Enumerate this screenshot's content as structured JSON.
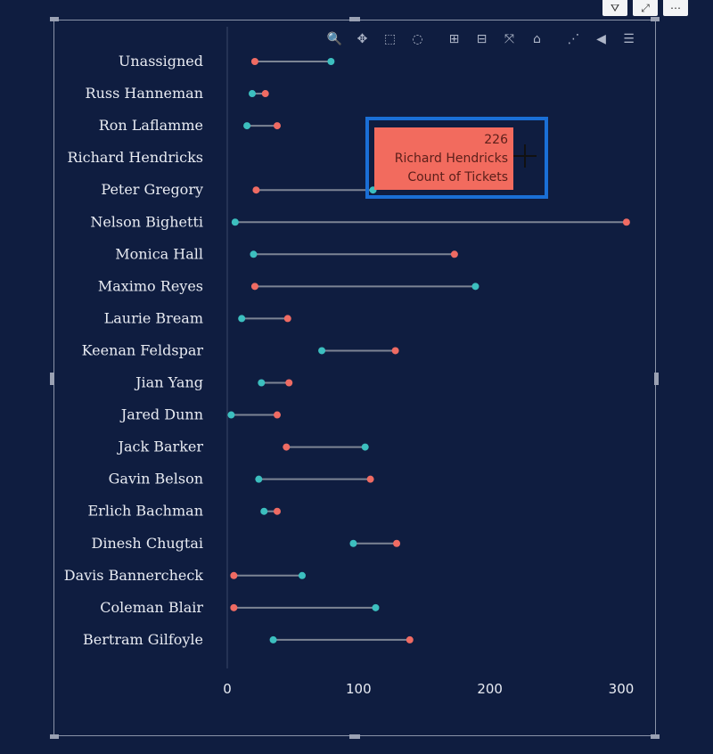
{
  "header_icons": [
    {
      "name": "filter-icon",
      "glyph": "⛛"
    },
    {
      "name": "focus-mode-icon",
      "glyph": "⤢"
    },
    {
      "name": "more-options-icon",
      "glyph": "⋯"
    }
  ],
  "toolbar": [
    {
      "name": "zoom-icon",
      "glyph": "🔍"
    },
    {
      "name": "pan-icon",
      "glyph": "✥"
    },
    {
      "name": "box-select-icon",
      "glyph": "⬚"
    },
    {
      "name": "lasso-select-icon",
      "glyph": "◌"
    },
    {
      "name": "zoom-in-icon",
      "glyph": "⊞"
    },
    {
      "name": "zoom-out-icon",
      "glyph": "⊟"
    },
    {
      "name": "autoscale-icon",
      "glyph": "⤧"
    },
    {
      "name": "reset-axes-icon",
      "glyph": "⌂"
    },
    {
      "name": "spike-lines-icon",
      "glyph": "⋰"
    },
    {
      "name": "hover-closest-icon",
      "glyph": "◀"
    },
    {
      "name": "hover-compare-icon",
      "glyph": "☰"
    }
  ],
  "tooltip": {
    "value": "226",
    "name": "Richard Hendricks",
    "measure": "Count of Tickets"
  },
  "chart_data": {
    "type": "dumbbell",
    "categories": [
      "Unassigned",
      "Russ Hanneman",
      "Ron Laflamme",
      "Richard Hendricks",
      "Peter Gregory",
      "Nelson Bighetti",
      "Monica Hall",
      "Maximo Reyes",
      "Laurie Bream",
      "Keenan Feldspar",
      "Jian Yang",
      "Jared Dunn",
      "Jack Barker",
      "Gavin Belson",
      "Erlich Bachman",
      "Dinesh Chugtai",
      "Davis Bannercheck",
      "Coleman Blair",
      "Bertram Gilfoyle"
    ],
    "series": [
      {
        "color": "#3cbfbf",
        "values": [
          79,
          19,
          15,
          null,
          111,
          6,
          20,
          189,
          11,
          72,
          26,
          3,
          105,
          24,
          28,
          96,
          57,
          113,
          35
        ]
      },
      {
        "color": "#ef6b63",
        "values": [
          21,
          29,
          38,
          null,
          22,
          304,
          173,
          21,
          46,
          128,
          47,
          38,
          45,
          109,
          38,
          129,
          5,
          5,
          139
        ]
      }
    ],
    "xlim": [
      0,
      300
    ],
    "xticks": [
      0,
      100,
      200,
      300
    ],
    "grid": false
  }
}
